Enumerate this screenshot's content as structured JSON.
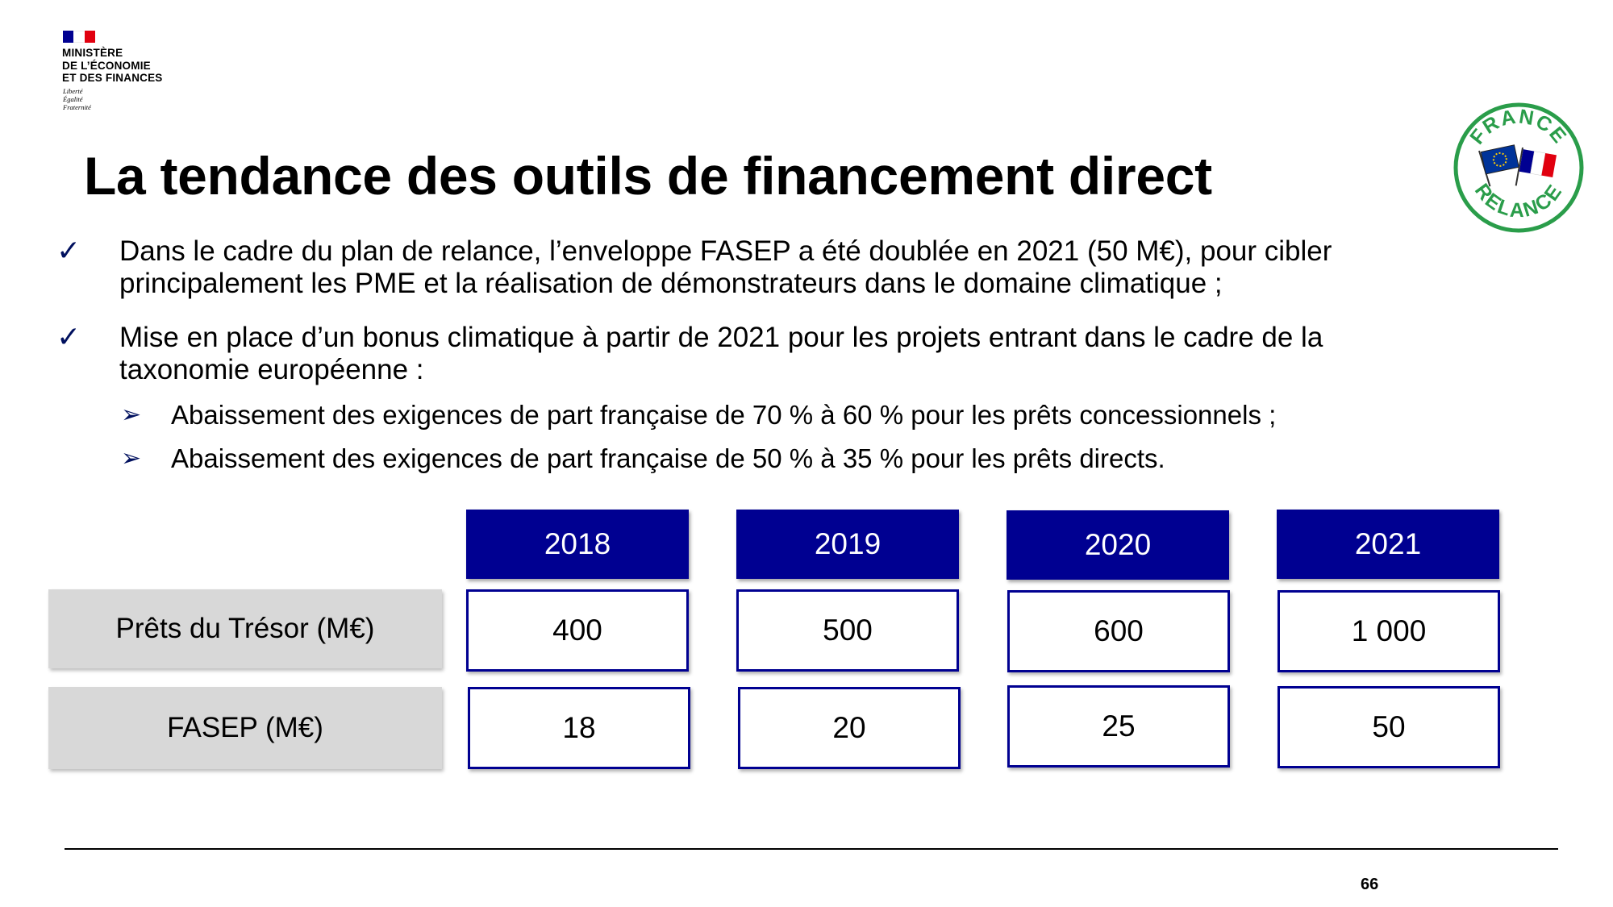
{
  "ministry": {
    "lines": [
      "MINISTÈRE",
      "DE L’ÉCONOMIE",
      "ET DES FINANCES"
    ],
    "motto": [
      "Liberté",
      "Égalité",
      "Fraternité"
    ],
    "flag_colors": [
      "#000091",
      "#ffffff",
      "#e1000f"
    ]
  },
  "logo": {
    "top_text": "FRANCE",
    "bottom_text": "RELANCE",
    "color": "#2a9d4a"
  },
  "title": "La tendance des outils de financement direct",
  "bullets": [
    {
      "icon": "checkmark-icon",
      "lines": [
        "Dans le cadre du plan de relance, l’enveloppe FASEP a été doublée en 2021 (50 M€), pour cibler",
        "principalement les PME et la réalisation de démonstrateurs dans le domaine climatique ;"
      ]
    },
    {
      "icon": "checkmark-icon",
      "lines": [
        "Mise en place d’un bonus climatique à partir de 2021 pour les projets entrant dans le cadre de la",
        "taxonomie européenne :"
      ],
      "sub": [
        {
          "icon": "arrow-bullet-icon",
          "text": "Abaissement des exigences de part française de 70 % à 60 % pour les prêts concessionnels ;"
        },
        {
          "icon": "arrow-bullet-icon",
          "text": "Abaissement des exigences de part française de 50 % à 35 % pour les prêts directs."
        }
      ]
    }
  ],
  "table": {
    "years": [
      "2018",
      "2019",
      "2020",
      "2021"
    ],
    "rows": [
      {
        "label": "Prêts du Trésor (M€)",
        "values": [
          "400",
          "500",
          "600",
          "1 000"
        ]
      },
      {
        "label": "FASEP (M€)",
        "values": [
          "18",
          "20",
          "25",
          "50"
        ]
      }
    ],
    "header_color": "#000091",
    "label_bg": "#d8d8d8"
  },
  "page_number": "66"
}
